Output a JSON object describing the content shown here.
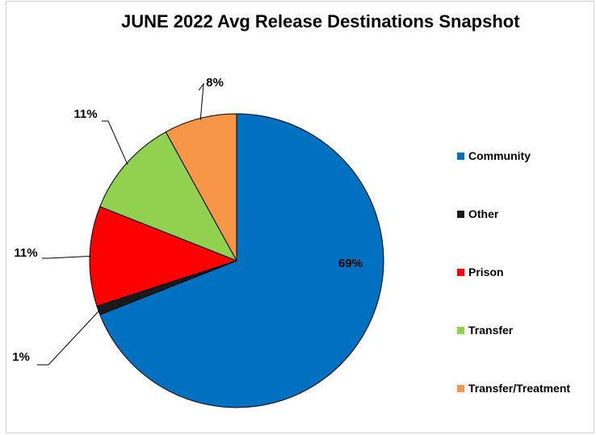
{
  "chart_data": {
    "type": "pie",
    "title": "JUNE 2022 Avg Release Destinations Snapshot",
    "slices": [
      {
        "label": "Community",
        "value": 69,
        "display": "69%",
        "color": "#0070C0"
      },
      {
        "label": "Other",
        "value": 1,
        "display": "1%",
        "color": "#1a1a1a"
      },
      {
        "label": "Prison",
        "value": 11,
        "display": "11%",
        "color": "#FF0000"
      },
      {
        "label": "Transfer",
        "value": 11,
        "display": "11%",
        "color": "#92D050"
      },
      {
        "label": "Transfer/Treatment",
        "value": 8,
        "display": "8%",
        "color": "#F79646"
      }
    ],
    "start_angle_deg": 0,
    "direction": "clockwise",
    "legend_position": "right"
  }
}
